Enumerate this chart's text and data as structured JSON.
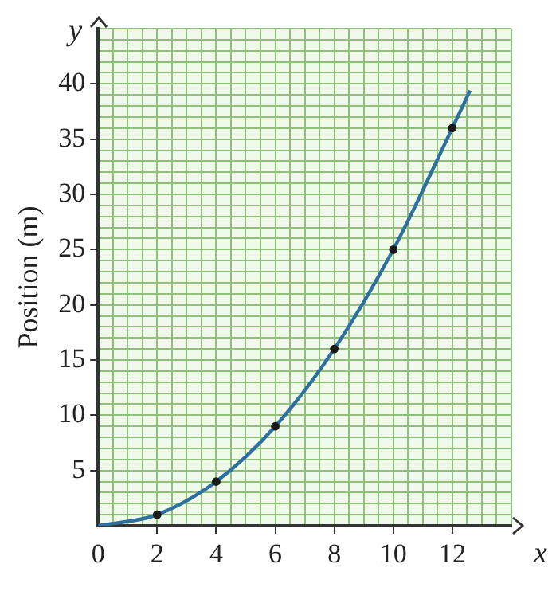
{
  "chart_data": {
    "type": "line",
    "xlabel": "x",
    "ylabel": "Position (m)",
    "annotations": [
      "y"
    ],
    "xlim": [
      0,
      14
    ],
    "ylim": [
      0,
      45
    ],
    "xticks": [
      0,
      {
        "value": 0.5,
        "label": null
      },
      {
        "value": 1,
        "label": null
      },
      {
        "value": 1.5,
        "label": null
      },
      2,
      {
        "value": 2.5,
        "label": null
      },
      {
        "value": 3,
        "label": null
      },
      {
        "value": 3.5,
        "label": null
      },
      4,
      {
        "value": 4.5,
        "label": null
      },
      {
        "value": 5,
        "label": null
      },
      {
        "value": 5.5,
        "label": null
      },
      6,
      {
        "value": 6.5,
        "label": null
      },
      {
        "value": 7,
        "label": null
      },
      {
        "value": 7.5,
        "label": null
      },
      8,
      {
        "value": 8.5,
        "label": null
      },
      {
        "value": 9,
        "label": null
      },
      {
        "value": 9.5,
        "label": null
      },
      10,
      {
        "value": 10.5,
        "label": null
      },
      {
        "value": 11,
        "label": null
      },
      {
        "value": 11.5,
        "label": null
      },
      12,
      {
        "value": 12.5,
        "label": null
      },
      {
        "value": 13,
        "label": null
      },
      {
        "value": 13.5,
        "label": null
      },
      {
        "value": 14,
        "label": null
      }
    ],
    "yticks": [
      {
        "value": 0,
        "label": null
      },
      {
        "value": 1,
        "label": null
      },
      {
        "value": 2,
        "label": null
      },
      {
        "value": 3,
        "label": null
      },
      {
        "value": 4,
        "label": null
      },
      5,
      {
        "value": 6,
        "label": null
      },
      {
        "value": 7,
        "label": null
      },
      {
        "value": 8,
        "label": null
      },
      {
        "value": 9,
        "label": null
      },
      10,
      {
        "value": 11,
        "label": null
      },
      {
        "value": 12,
        "label": null
      },
      {
        "value": 13,
        "label": null
      },
      {
        "value": 14,
        "label": null
      },
      15,
      {
        "value": 16,
        "label": null
      },
      {
        "value": 17,
        "label": null
      },
      {
        "value": 18,
        "label": null
      },
      {
        "value": 19,
        "label": null
      },
      20,
      {
        "value": 21,
        "label": null
      },
      {
        "value": 22,
        "label": null
      },
      {
        "value": 23,
        "label": null
      },
      {
        "value": 24,
        "label": null
      },
      25,
      {
        "value": 26,
        "label": null
      },
      {
        "value": 27,
        "label": null
      },
      {
        "value": 28,
        "label": null
      },
      {
        "value": 29,
        "label": null
      },
      30,
      {
        "value": 31,
        "label": null
      },
      {
        "value": 32,
        "label": null
      },
      {
        "value": 33,
        "label": null
      },
      {
        "value": 34,
        "label": null
      },
      35,
      {
        "value": 36,
        "label": null
      },
      {
        "value": 37,
        "label": null
      },
      {
        "value": 38,
        "label": null
      },
      {
        "value": 39,
        "label": null
      },
      40,
      {
        "value": 41,
        "label": null
      },
      {
        "value": 42,
        "label": null
      },
      {
        "value": 43,
        "label": null
      },
      {
        "value": 44,
        "label": null
      },
      {
        "value": 45,
        "label": null
      }
    ],
    "grid": true,
    "series": [
      {
        "type": "line",
        "color": "#2e6f9e",
        "marker": "none",
        "x": [
          0,
          2,
          4,
          6,
          8,
          10,
          12,
          12.6
        ],
        "values": [
          0,
          1,
          4,
          9,
          16,
          25,
          36,
          39.4
        ]
      },
      {
        "type": "scatter",
        "color": "#1a1a1a",
        "marker": "circle",
        "x": [
          2,
          4,
          6,
          8,
          10,
          12
        ],
        "values": [
          1,
          4,
          9,
          16,
          25,
          36
        ]
      }
    ]
  }
}
